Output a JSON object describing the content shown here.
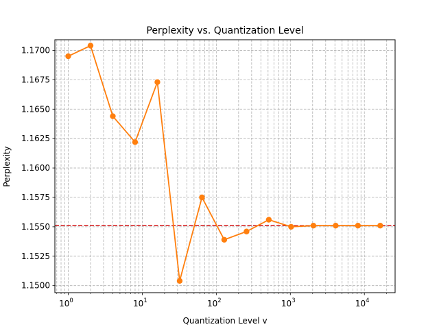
{
  "chart_data": {
    "type": "line",
    "title": "Perplexity vs. Quantization Level",
    "xlabel": "Quantization Level v",
    "ylabel": "Perplexity",
    "xscale": "log",
    "xlim": [
      0.66,
      26000
    ],
    "ylim": [
      1.1494,
      1.1709
    ],
    "grid": true,
    "grid_style": "dashed",
    "x_ticks": [
      {
        "value": 1,
        "label_base": "10",
        "label_exp": "0"
      },
      {
        "value": 10,
        "label_base": "10",
        "label_exp": "1"
      },
      {
        "value": 100,
        "label_base": "10",
        "label_exp": "2"
      },
      {
        "value": 1000,
        "label_base": "10",
        "label_exp": "3"
      },
      {
        "value": 10000,
        "label_base": "10",
        "label_exp": "4"
      }
    ],
    "y_ticks": [
      1.15,
      1.1525,
      1.155,
      1.1575,
      1.16,
      1.1625,
      1.165,
      1.1675,
      1.17
    ],
    "y_tick_labels": [
      "1.1500",
      "1.1525",
      "1.1550",
      "1.1575",
      "1.1600",
      "1.1625",
      "1.1650",
      "1.1675",
      "1.1700"
    ],
    "series": [
      {
        "color": "#ff7f0e",
        "marker": "circle",
        "x": [
          1,
          2,
          4,
          8,
          16,
          32,
          64,
          128,
          256,
          512,
          1024,
          2048,
          4096,
          8192,
          16384
        ],
        "y": [
          1.1695,
          1.1704,
          1.1644,
          1.1622,
          1.1673,
          1.1504,
          1.1575,
          1.1539,
          1.1546,
          1.1556,
          1.155,
          1.1551,
          1.1551,
          1.1551,
          1.1551
        ]
      }
    ],
    "reference_line": {
      "y": 1.1551,
      "color": "#d62728",
      "style": "dashed"
    }
  }
}
